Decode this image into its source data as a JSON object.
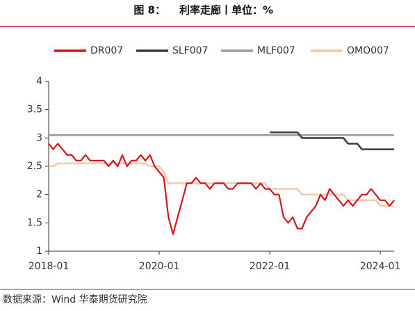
{
  "chart_data": {
    "type": "line",
    "figure_label": "图 8：",
    "title": "利率走廊丨单位：%",
    "source": "数据来源：Wind 华泰期货研究院",
    "x": [
      "2018-01",
      "2018-02",
      "2018-03",
      "2018-04",
      "2018-05",
      "2018-06",
      "2018-07",
      "2018-08",
      "2018-09",
      "2018-10",
      "2018-11",
      "2018-12",
      "2019-01",
      "2019-02",
      "2019-03",
      "2019-04",
      "2019-05",
      "2019-06",
      "2019-07",
      "2019-08",
      "2019-09",
      "2019-10",
      "2019-11",
      "2019-12",
      "2020-01",
      "2020-02",
      "2020-03",
      "2020-04",
      "2020-05",
      "2020-06",
      "2020-07",
      "2020-08",
      "2020-09",
      "2020-10",
      "2020-11",
      "2020-12",
      "2021-01",
      "2021-02",
      "2021-03",
      "2021-04",
      "2021-05",
      "2021-06",
      "2021-07",
      "2021-08",
      "2021-09",
      "2021-10",
      "2021-11",
      "2021-12",
      "2022-01",
      "2022-02",
      "2022-03",
      "2022-04",
      "2022-05",
      "2022-06",
      "2022-07",
      "2022-08",
      "2022-09",
      "2022-10",
      "2022-11",
      "2022-12",
      "2023-01",
      "2023-02",
      "2023-03",
      "2023-04",
      "2023-05",
      "2023-06",
      "2023-07",
      "2023-08",
      "2023-09",
      "2023-10",
      "2023-11",
      "2023-12",
      "2024-01",
      "2024-02",
      "2024-03",
      "2024-04"
    ],
    "xlim": [
      "2018-01",
      "2024-04"
    ],
    "xticks": [
      "2018-01",
      "2020-01",
      "2022-01",
      "2024-01"
    ],
    "ylim": [
      1,
      4
    ],
    "yticks": [
      1,
      1.5,
      2,
      2.5,
      3,
      3.5,
      4
    ],
    "grid": false,
    "legend": "top",
    "series": [
      {
        "name": "DR007",
        "color": "#d7141e",
        "values": [
          2.9,
          2.8,
          2.9,
          2.8,
          2.7,
          2.7,
          2.6,
          2.6,
          2.7,
          2.6,
          2.6,
          2.6,
          2.6,
          2.5,
          2.6,
          2.5,
          2.7,
          2.5,
          2.6,
          2.6,
          2.7,
          2.6,
          2.7,
          2.5,
          2.4,
          2.3,
          1.6,
          1.3,
          1.6,
          1.9,
          2.2,
          2.2,
          2.3,
          2.2,
          2.2,
          2.1,
          2.2,
          2.2,
          2.2,
          2.1,
          2.1,
          2.2,
          2.2,
          2.2,
          2.2,
          2.1,
          2.2,
          2.1,
          2.1,
          2.0,
          2.0,
          1.6,
          1.5,
          1.6,
          1.4,
          1.4,
          1.6,
          1.7,
          1.8,
          2.0,
          1.9,
          2.1,
          2.0,
          1.9,
          1.8,
          1.9,
          1.8,
          1.9,
          2.0,
          2.0,
          2.1,
          2.0,
          1.9,
          1.9,
          1.8,
          1.9
        ]
      },
      {
        "name": "SLF007",
        "color": "#3a3a3a",
        "values": [
          null,
          null,
          null,
          null,
          null,
          null,
          null,
          null,
          null,
          null,
          null,
          null,
          null,
          null,
          null,
          null,
          null,
          null,
          null,
          null,
          null,
          null,
          null,
          null,
          null,
          null,
          null,
          null,
          null,
          null,
          null,
          null,
          null,
          null,
          null,
          null,
          null,
          null,
          null,
          null,
          null,
          null,
          null,
          null,
          null,
          null,
          null,
          null,
          3.1,
          3.1,
          3.1,
          3.1,
          3.1,
          3.1,
          3.1,
          3.0,
          3.0,
          3.0,
          3.0,
          3.0,
          3.0,
          3.0,
          3.0,
          3.0,
          3.0,
          2.9,
          2.9,
          2.9,
          2.8,
          2.8,
          2.8,
          2.8,
          2.8,
          2.8,
          2.8,
          2.8
        ]
      },
      {
        "name": "MLF007",
        "color": "#9b9b9b",
        "values": [
          3.05,
          3.05,
          3.05,
          3.05,
          3.05,
          3.05,
          3.05,
          3.05,
          3.05,
          3.05,
          3.05,
          3.05,
          3.05,
          3.05,
          3.05,
          3.05,
          3.05,
          3.05,
          3.05,
          3.05,
          3.05,
          3.05,
          3.05,
          3.05,
          3.05,
          3.05,
          3.05,
          3.05,
          3.05,
          3.05,
          3.05,
          3.05,
          3.05,
          3.05,
          3.05,
          3.05,
          3.05,
          3.05,
          3.05,
          3.05,
          3.05,
          3.05,
          3.05,
          3.05,
          3.05,
          3.05,
          3.05,
          3.05,
          3.05,
          3.05,
          3.05,
          3.05,
          3.05,
          3.05,
          3.05,
          3.05,
          3.05,
          3.05,
          3.05,
          3.05,
          3.05,
          3.05,
          3.05,
          3.05,
          3.05,
          3.05,
          3.05,
          3.05,
          3.05,
          3.05,
          3.05,
          3.05,
          3.05,
          3.05,
          3.05,
          3.05
        ]
      },
      {
        "name": "OMO007",
        "color": "#f6c7ad",
        "values": [
          2.5,
          2.5,
          2.55,
          2.55,
          2.55,
          2.55,
          2.55,
          2.55,
          2.55,
          2.55,
          2.55,
          2.55,
          2.55,
          2.55,
          2.55,
          2.55,
          2.55,
          2.55,
          2.55,
          2.55,
          2.55,
          2.55,
          2.5,
          2.5,
          2.5,
          2.4,
          2.2,
          2.2,
          2.2,
          2.2,
          2.2,
          2.2,
          2.2,
          2.2,
          2.2,
          2.2,
          2.2,
          2.2,
          2.2,
          2.2,
          2.2,
          2.2,
          2.2,
          2.2,
          2.2,
          2.2,
          2.2,
          2.2,
          2.1,
          2.1,
          2.1,
          2.1,
          2.1,
          2.1,
          2.1,
          2.0,
          2.0,
          2.0,
          2.0,
          2.0,
          2.0,
          2.0,
          2.0,
          2.0,
          2.0,
          1.9,
          1.9,
          1.9,
          1.9,
          1.9,
          1.9,
          1.9,
          1.8,
          1.8,
          1.8,
          1.8
        ]
      }
    ]
  }
}
